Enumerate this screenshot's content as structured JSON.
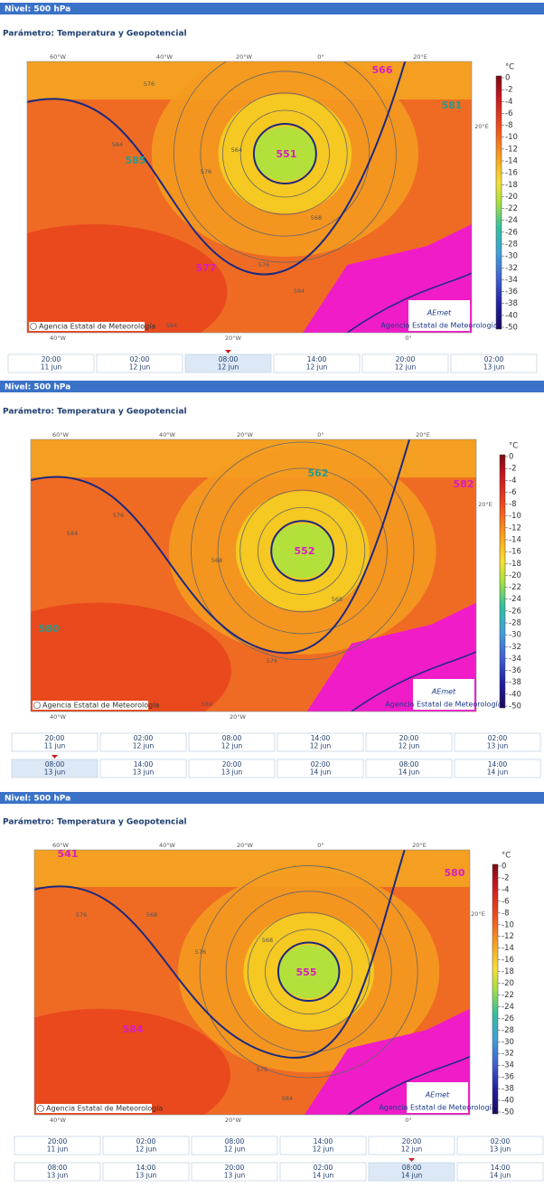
{
  "panels": [
    {
      "level": "Nivel: 500 hPa",
      "parameter": "Parámetro: Temperatura y Geopotencial",
      "map": {
        "lon_top": [
          "60°W",
          "40°W",
          "20°W",
          "0°",
          "20°E"
        ],
        "lon_right": "20°E",
        "lon_bottom": [
          "40°W",
          "20°W",
          "0°"
        ],
        "centers": [
          "566",
          "581",
          "585",
          "551",
          "577"
        ],
        "contours": [
          "576",
          "584",
          "576",
          "564",
          "568",
          "576",
          "584",
          "584"
        ],
        "credit": "Agencia Estatal de Meteorología",
        "logo": "AEmet",
        "logo_sub": "Agencia Estatal de Meteorología"
      },
      "colorbar": {
        "unit": "°C",
        "ticks": [
          0,
          -2,
          -4,
          -6,
          -8,
          -10,
          -12,
          -14,
          -16,
          -18,
          -20,
          -22,
          -24,
          -26,
          -28,
          -30,
          -32,
          -34,
          -36,
          -38,
          -40,
          -50
        ]
      },
      "times": [
        {
          "hour": "20:00",
          "day": "11 jun"
        },
        {
          "hour": "02:00",
          "day": "12 jun"
        },
        {
          "hour": "08:00",
          "day": "12 jun"
        },
        {
          "hour": "14:00",
          "day": "12 jun"
        },
        {
          "hour": "20:00",
          "day": "12 jun"
        },
        {
          "hour": "02:00",
          "day": "13 jun"
        }
      ],
      "selected": 2
    },
    {
      "level": "Nivel: 500 hPa",
      "parameter": "Parámetro: Temperatura y Geopotencial",
      "map": {
        "lon_top": [
          "60°W",
          "40°W",
          "20°W",
          "0°",
          "20°E"
        ],
        "lon_right": "20°E",
        "lon_bottom": [
          "40°W",
          "20°W"
        ],
        "centers": [
          "562",
          "582",
          "580",
          "552"
        ],
        "contours": [
          "576",
          "584",
          "568",
          "576",
          "584",
          "568"
        ],
        "credit": "Agencia Estatal de Meteorología",
        "logo": "AEmet",
        "logo_sub": "Agencia Estatal de Meteorología"
      },
      "colorbar": {
        "unit": "°C",
        "ticks": [
          0,
          -2,
          -4,
          -6,
          -8,
          -10,
          -12,
          -14,
          -16,
          -18,
          -20,
          -22,
          -24,
          -26,
          -28,
          -30,
          -32,
          -34,
          -36,
          -38,
          -40,
          -50
        ]
      },
      "times": [
        {
          "hour": "20:00",
          "day": "11 jun"
        },
        {
          "hour": "02:00",
          "day": "12 jun"
        },
        {
          "hour": "08:00",
          "day": "12 jun"
        },
        {
          "hour": "14:00",
          "day": "12 jun"
        },
        {
          "hour": "20:00",
          "day": "12 jun"
        },
        {
          "hour": "02:00",
          "day": "13 jun"
        },
        {
          "hour": "08:00",
          "day": "13 jun"
        },
        {
          "hour": "14:00",
          "day": "13 jun"
        },
        {
          "hour": "20:00",
          "day": "13 jun"
        },
        {
          "hour": "02:00",
          "day": "14 jun"
        },
        {
          "hour": "08:00",
          "day": "14 jun"
        },
        {
          "hour": "14:00",
          "day": "14 jun"
        }
      ],
      "selected": 6
    },
    {
      "level": "Nivel: 500 hPa",
      "parameter": "Parámetro: Temperatura y Geopotencial",
      "map": {
        "lon_top": [
          "60°W",
          "40°W",
          "20°W",
          "0°",
          "20°E"
        ],
        "lon_right": "20°E",
        "lon_bottom": [
          "40°W",
          "20°W",
          "0°"
        ],
        "centers": [
          "541",
          "580",
          "555",
          "584"
        ],
        "contours": [
          "576",
          "568",
          "576",
          "568",
          "576",
          "584"
        ],
        "credit": "Agencia Estatal de Meteorología",
        "logo": "AEmet",
        "logo_sub": "Agencia Estatal de Meteorología"
      },
      "colorbar": {
        "unit": "°C",
        "ticks": [
          0,
          -2,
          -4,
          -6,
          -8,
          -10,
          -12,
          -14,
          -16,
          -18,
          -20,
          -22,
          -24,
          -26,
          -28,
          -30,
          -32,
          -34,
          -36,
          -38,
          -40,
          -50
        ]
      },
      "times": [
        {
          "hour": "20:00",
          "day": "11 jun"
        },
        {
          "hour": "02:00",
          "day": "12 jun"
        },
        {
          "hour": "08:00",
          "day": "12 jun"
        },
        {
          "hour": "14:00",
          "day": "12 jun"
        },
        {
          "hour": "20:00",
          "day": "12 jun"
        },
        {
          "hour": "02:00",
          "day": "13 jun"
        },
        {
          "hour": "08:00",
          "day": "13 jun"
        },
        {
          "hour": "14:00",
          "day": "13 jun"
        },
        {
          "hour": "20:00",
          "day": "13 jun"
        },
        {
          "hour": "02:00",
          "day": "14 jun"
        },
        {
          "hour": "08:00",
          "day": "14 jun"
        },
        {
          "hour": "14:00",
          "day": "14 jun"
        }
      ],
      "selected": 10
    }
  ]
}
